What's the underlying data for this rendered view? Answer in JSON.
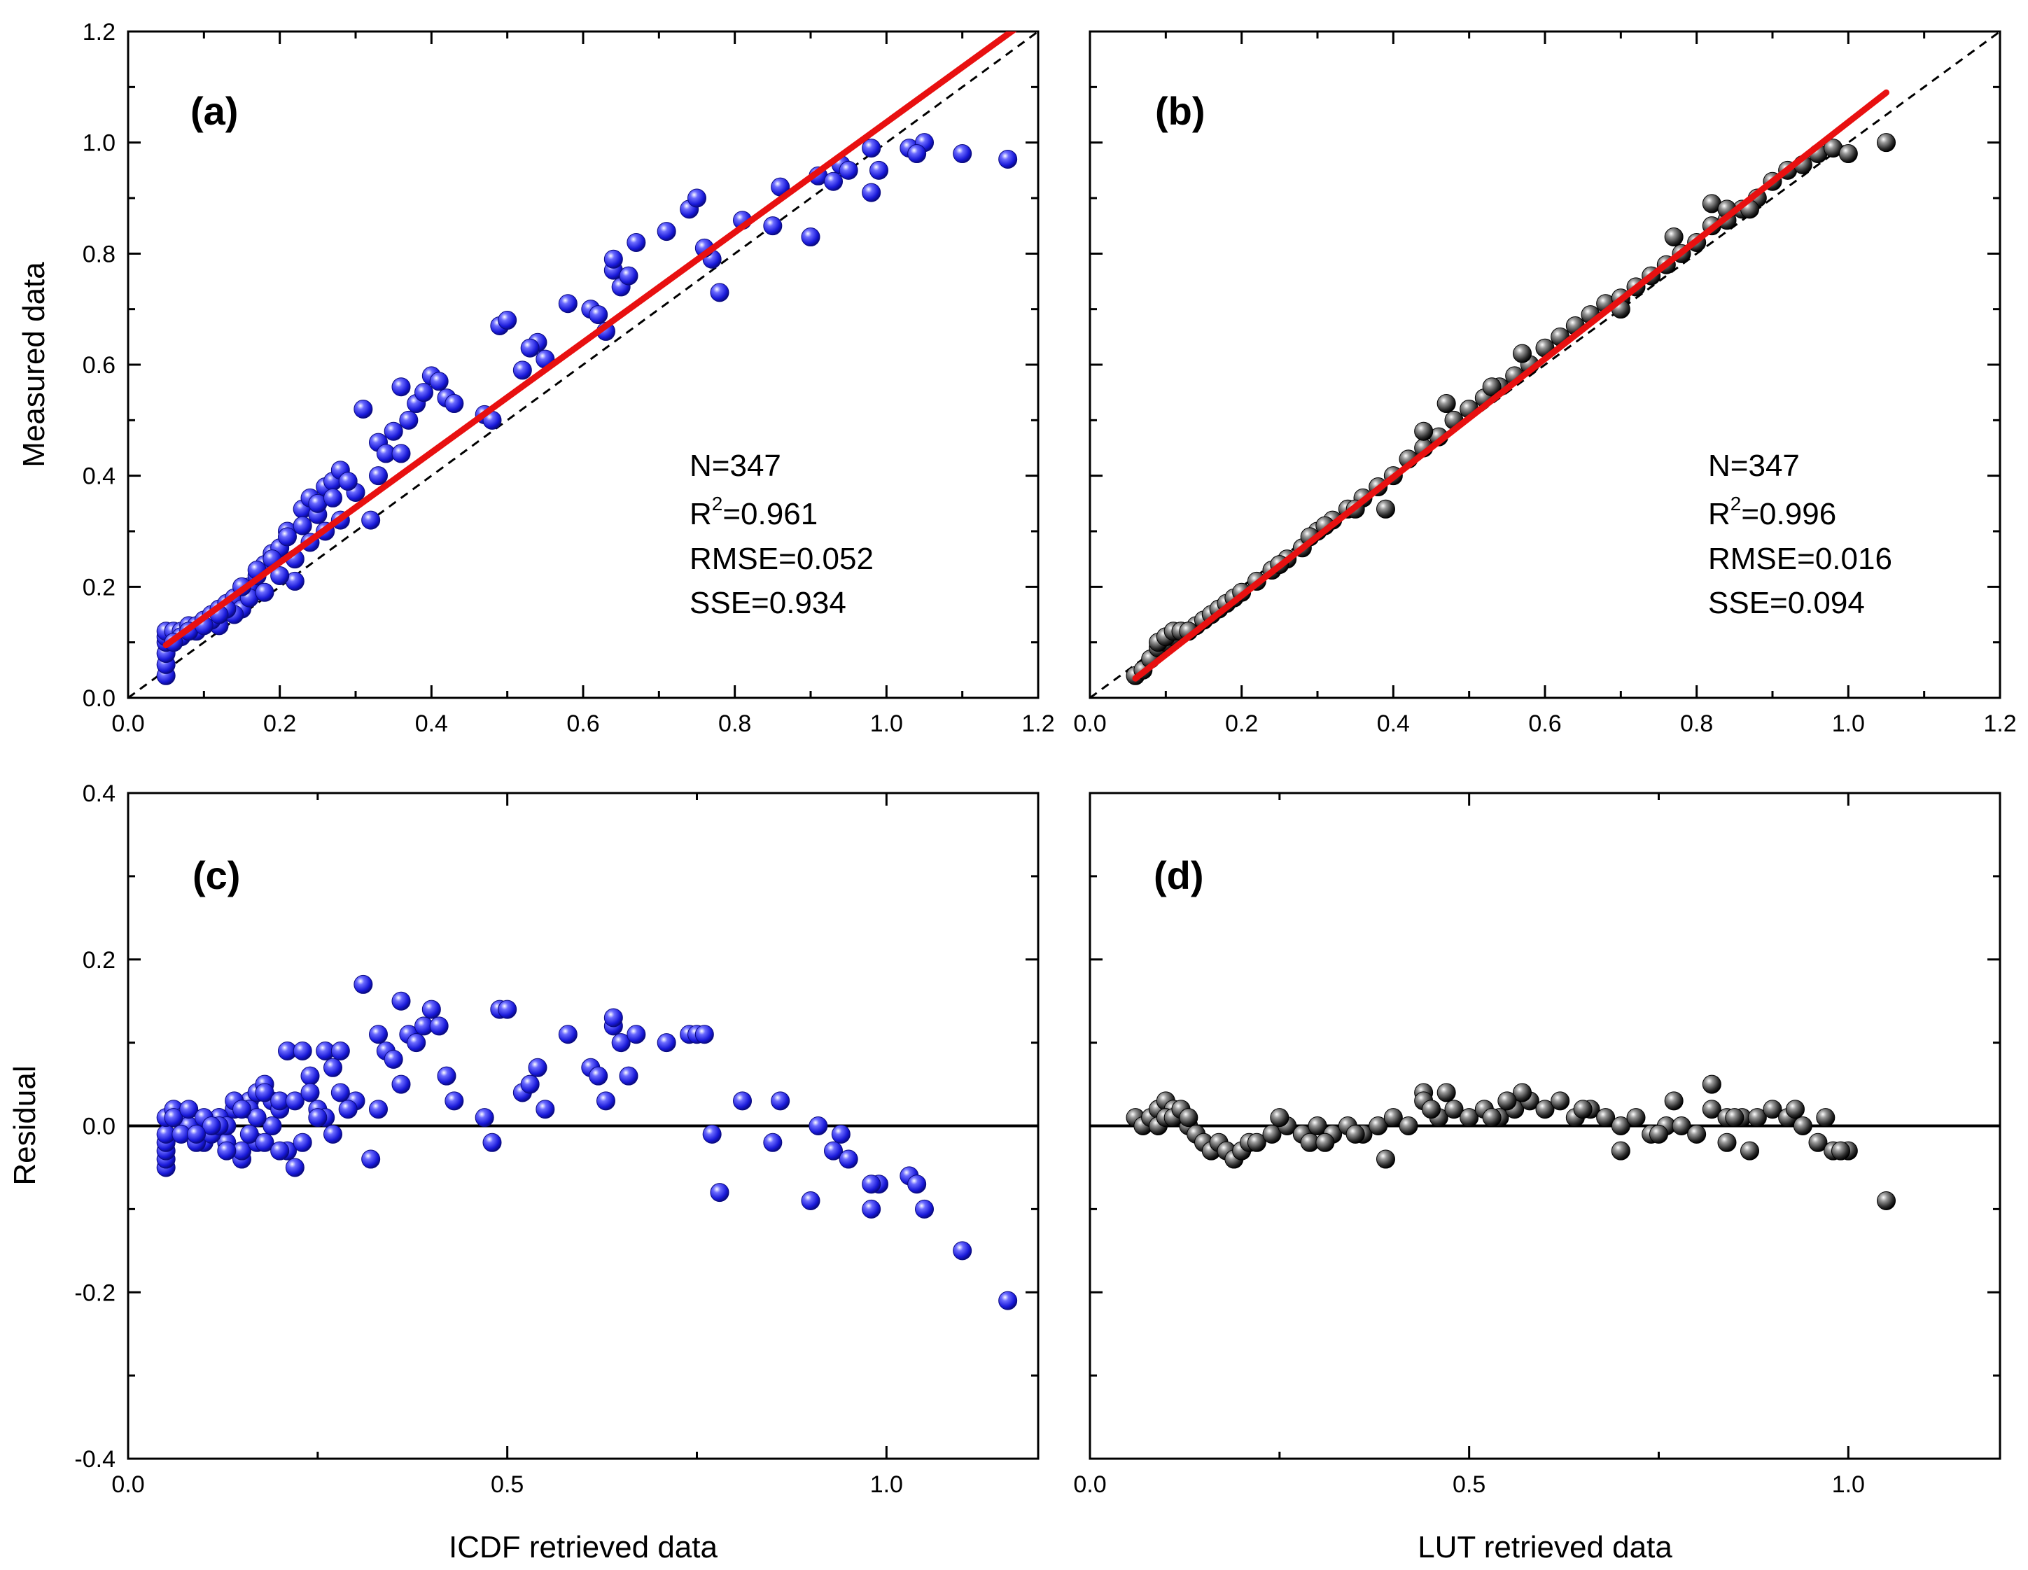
{
  "chart_data": [
    {
      "panel": "a",
      "type": "scatter",
      "label": "(a)",
      "xlabel": "",
      "ylabel": "Measured data",
      "xlim": [
        0.0,
        1.2
      ],
      "ylim": [
        0.0,
        1.2
      ],
      "xticks": [
        "0.0",
        "0.2",
        "0.4",
        "0.6",
        "0.8",
        "1.0",
        "1.2"
      ],
      "yticks": [
        "0.0",
        "0.2",
        "0.4",
        "0.6",
        "0.8",
        "1.0",
        "1.2"
      ],
      "marker_color": "#2020e0",
      "fit_line": {
        "color": "#e81010",
        "x": [
          0.05,
          1.18
        ],
        "y": [
          0.095,
          1.215
        ]
      },
      "reference_line": {
        "style": "dashed",
        "x": [
          0.0,
          1.2
        ],
        "y": [
          0.0,
          1.2
        ]
      },
      "stats": {
        "n": "N=347",
        "r2_prefix": "R",
        "r2_sup": "2",
        "r2_value": "=0.961",
        "rmse": "RMSE=0.052",
        "sse": "SSE=0.934"
      },
      "x": [
        0.05,
        0.05,
        0.05,
        0.05,
        0.05,
        0.05,
        0.06,
        0.07,
        0.08,
        0.09,
        0.1,
        0.11,
        0.12,
        0.13,
        0.14,
        0.15,
        0.16,
        0.17,
        0.18,
        0.19,
        0.2,
        0.21,
        0.22,
        0.23,
        0.24,
        0.25,
        0.26,
        0.27,
        0.28,
        0.3,
        0.31,
        0.32,
        0.33,
        0.34,
        0.35,
        0.36,
        0.37,
        0.38,
        0.39,
        0.4,
        0.41,
        0.42,
        0.47,
        0.48,
        0.49,
        0.5,
        0.52,
        0.54,
        0.55,
        0.61,
        0.62,
        0.63,
        0.64,
        0.65,
        0.67,
        0.71,
        0.74,
        0.75,
        0.77,
        0.78,
        0.81,
        0.85,
        0.86,
        0.9,
        0.91,
        0.93,
        0.94,
        0.95,
        0.98,
        0.99,
        1.03,
        1.05,
        1.1,
        1.16,
        0.12,
        0.14,
        0.16,
        0.18,
        0.2,
        0.22,
        0.24,
        0.26,
        0.28,
        0.15,
        0.17,
        0.19,
        0.21,
        0.23,
        0.25,
        0.27,
        0.29,
        0.33,
        0.36,
        0.43,
        0.53,
        0.76,
        0.64,
        0.58,
        0.66,
        0.98,
        1.04,
        0.07,
        0.09,
        0.11,
        0.13,
        0.06,
        0.08,
        0.1,
        0.12
      ],
      "y": [
        0.04,
        0.06,
        0.08,
        0.1,
        0.11,
        0.12,
        0.12,
        0.12,
        0.13,
        0.13,
        0.14,
        0.15,
        0.16,
        0.17,
        0.18,
        0.16,
        0.2,
        0.22,
        0.24,
        0.26,
        0.27,
        0.3,
        0.21,
        0.34,
        0.36,
        0.33,
        0.38,
        0.39,
        0.41,
        0.37,
        0.52,
        0.32,
        0.46,
        0.44,
        0.48,
        0.56,
        0.5,
        0.53,
        0.55,
        0.58,
        0.57,
        0.54,
        0.51,
        0.5,
        0.67,
        0.68,
        0.59,
        0.64,
        0.61,
        0.7,
        0.69,
        0.66,
        0.77,
        0.74,
        0.82,
        0.84,
        0.88,
        0.9,
        0.79,
        0.73,
        0.86,
        0.85,
        0.92,
        0.83,
        0.94,
        0.93,
        0.96,
        0.95,
        0.91,
        0.95,
        0.99,
        1.0,
        0.98,
        0.97,
        0.13,
        0.15,
        0.18,
        0.19,
        0.22,
        0.25,
        0.28,
        0.3,
        0.32,
        0.2,
        0.23,
        0.25,
        0.29,
        0.31,
        0.35,
        0.36,
        0.39,
        0.4,
        0.44,
        0.53,
        0.63,
        0.81,
        0.79,
        0.71,
        0.76,
        0.99,
        0.98,
        0.11,
        0.12,
        0.14,
        0.16,
        0.1,
        0.12,
        0.13,
        0.15
      ]
    },
    {
      "panel": "b",
      "type": "scatter",
      "label": "(b)",
      "xlabel": "",
      "ylabel": "",
      "xlim": [
        0.0,
        1.2
      ],
      "ylim": [
        0.0,
        1.2
      ],
      "xticks": [
        "0.0",
        "0.2",
        "0.4",
        "0.6",
        "0.8",
        "1.0",
        "1.2"
      ],
      "yticks": [],
      "marker_color": "#3a3a3a",
      "fit_line": {
        "color": "#e81010",
        "x": [
          0.06,
          1.05
        ],
        "y": [
          0.035,
          1.09
        ]
      },
      "reference_line": {
        "style": "dashed",
        "x": [
          0.0,
          1.2
        ],
        "y": [
          0.0,
          1.2
        ]
      },
      "stats": {
        "n": "N=347",
        "r2_prefix": "R",
        "r2_sup": "2",
        "r2_value": "=0.996",
        "rmse": "RMSE=0.016",
        "sse": "SSE=0.094"
      },
      "x": [
        0.06,
        0.07,
        0.08,
        0.09,
        0.1,
        0.11,
        0.12,
        0.13,
        0.14,
        0.15,
        0.16,
        0.17,
        0.18,
        0.19,
        0.2,
        0.22,
        0.24,
        0.26,
        0.28,
        0.3,
        0.32,
        0.34,
        0.36,
        0.38,
        0.4,
        0.42,
        0.44,
        0.46,
        0.48,
        0.5,
        0.52,
        0.54,
        0.56,
        0.58,
        0.6,
        0.62,
        0.64,
        0.66,
        0.68,
        0.7,
        0.72,
        0.74,
        0.76,
        0.78,
        0.8,
        0.82,
        0.84,
        0.86,
        0.88,
        0.9,
        0.92,
        0.94,
        0.96,
        0.98,
        1.0,
        1.05,
        0.57,
        0.44,
        0.47,
        0.39,
        0.82,
        0.77,
        0.7,
        0.84,
        0.87,
        0.09,
        0.1,
        0.11,
        0.12,
        0.13,
        0.25,
        0.29,
        0.31,
        0.35,
        0.53
      ],
      "y": [
        0.04,
        0.05,
        0.07,
        0.09,
        0.1,
        0.11,
        0.12,
        0.12,
        0.13,
        0.14,
        0.15,
        0.16,
        0.17,
        0.18,
        0.19,
        0.21,
        0.23,
        0.25,
        0.27,
        0.3,
        0.32,
        0.34,
        0.36,
        0.38,
        0.4,
        0.43,
        0.45,
        0.47,
        0.5,
        0.52,
        0.54,
        0.56,
        0.58,
        0.6,
        0.63,
        0.65,
        0.67,
        0.69,
        0.71,
        0.72,
        0.74,
        0.76,
        0.78,
        0.8,
        0.82,
        0.85,
        0.86,
        0.88,
        0.9,
        0.93,
        0.95,
        0.96,
        0.98,
        0.99,
        0.98,
        1.0,
        0.62,
        0.48,
        0.53,
        0.34,
        0.89,
        0.83,
        0.7,
        0.88,
        0.88,
        0.1,
        0.11,
        0.12,
        0.12,
        0.12,
        0.24,
        0.29,
        0.31,
        0.34,
        0.56
      ]
    },
    {
      "panel": "c",
      "type": "scatter",
      "label": "(c)",
      "xlabel": "ICDF retrieved data",
      "ylabel": "Residual",
      "xlim": [
        0.0,
        1.2
      ],
      "ylim": [
        -0.4,
        0.4
      ],
      "xticks": [
        "0.0",
        "0.5",
        "1.0"
      ],
      "yticks": [
        "-0.4",
        "-0.2",
        "0.0",
        "0.2",
        "0.4"
      ],
      "marker_color": "#2020e0",
      "zero_line": true,
      "x": [
        0.05,
        0.05,
        0.05,
        0.05,
        0.05,
        0.05,
        0.06,
        0.07,
        0.08,
        0.09,
        0.1,
        0.11,
        0.12,
        0.13,
        0.14,
        0.15,
        0.16,
        0.17,
        0.18,
        0.19,
        0.2,
        0.21,
        0.22,
        0.23,
        0.24,
        0.25,
        0.26,
        0.27,
        0.28,
        0.3,
        0.31,
        0.32,
        0.33,
        0.34,
        0.35,
        0.36,
        0.37,
        0.38,
        0.39,
        0.4,
        0.41,
        0.42,
        0.47,
        0.48,
        0.49,
        0.5,
        0.52,
        0.54,
        0.55,
        0.61,
        0.62,
        0.63,
        0.64,
        0.65,
        0.67,
        0.71,
        0.74,
        0.75,
        0.77,
        0.78,
        0.81,
        0.85,
        0.86,
        0.9,
        0.91,
        0.93,
        0.94,
        0.95,
        0.98,
        0.99,
        1.03,
        1.05,
        1.1,
        1.16,
        0.12,
        0.14,
        0.16,
        0.18,
        0.2,
        0.22,
        0.24,
        0.26,
        0.28,
        0.15,
        0.17,
        0.19,
        0.21,
        0.23,
        0.25,
        0.27,
        0.29,
        0.33,
        0.36,
        0.43,
        0.53,
        0.76,
        0.64,
        0.58,
        0.66,
        0.98,
        1.04,
        0.07,
        0.09,
        0.11,
        0.13,
        0.06,
        0.08,
        0.1,
        0.12,
        0.16,
        0.18,
        0.2,
        0.19,
        0.17,
        0.15,
        0.13,
        0.11,
        0.09
      ],
      "y": [
        -0.05,
        -0.04,
        -0.03,
        -0.02,
        -0.01,
        0.01,
        0.02,
        0.01,
        0.0,
        -0.01,
        -0.02,
        0.0,
        0.01,
        -0.02,
        0.02,
        -0.04,
        0.03,
        0.04,
        0.05,
        0.03,
        0.02,
        0.09,
        -0.05,
        0.09,
        0.06,
        0.02,
        0.09,
        0.07,
        0.09,
        0.03,
        0.17,
        -0.04,
        0.11,
        0.09,
        0.08,
        0.15,
        0.11,
        0.1,
        0.12,
        0.14,
        0.12,
        0.06,
        0.01,
        -0.02,
        0.14,
        0.14,
        0.04,
        0.07,
        0.02,
        0.07,
        0.06,
        0.03,
        0.12,
        0.1,
        0.11,
        0.1,
        0.11,
        0.11,
        -0.01,
        -0.08,
        0.03,
        -0.02,
        0.03,
        -0.09,
        0.0,
        -0.03,
        -0.01,
        -0.04,
        -0.1,
        -0.07,
        -0.06,
        -0.1,
        -0.15,
        -0.21,
        0.01,
        0.03,
        0.02,
        0.04,
        0.03,
        0.03,
        0.04,
        0.01,
        0.04,
        -0.03,
        -0.02,
        0.0,
        -0.03,
        -0.02,
        0.01,
        -0.01,
        0.02,
        0.02,
        0.05,
        0.03,
        0.05,
        0.11,
        0.13,
        0.11,
        0.06,
        -0.07,
        -0.07,
        -0.01,
        -0.02,
        -0.01,
        0.0,
        0.01,
        0.02,
        0.01,
        0.0,
        -0.01,
        -0.02,
        -0.03,
        0.0,
        0.01,
        0.02,
        -0.03,
        0.0,
        -0.01
      ]
    },
    {
      "panel": "d",
      "type": "scatter",
      "label": "(d)",
      "xlabel": "LUT retrieved data",
      "ylabel": "",
      "xlim": [
        0.0,
        1.2
      ],
      "ylim": [
        -0.4,
        0.4
      ],
      "xticks": [
        "0.0",
        "0.5",
        "1.0"
      ],
      "yticks": [],
      "marker_color": "#3a3a3a",
      "zero_line": true,
      "x": [
        0.06,
        0.07,
        0.08,
        0.09,
        0.1,
        0.11,
        0.12,
        0.13,
        0.14,
        0.15,
        0.16,
        0.17,
        0.18,
        0.19,
        0.2,
        0.21,
        0.22,
        0.24,
        0.26,
        0.28,
        0.3,
        0.32,
        0.34,
        0.36,
        0.38,
        0.4,
        0.42,
        0.44,
        0.46,
        0.48,
        0.5,
        0.52,
        0.54,
        0.56,
        0.58,
        0.6,
        0.62,
        0.64,
        0.66,
        0.68,
        0.7,
        0.72,
        0.74,
        0.76,
        0.78,
        0.8,
        0.82,
        0.84,
        0.86,
        0.88,
        0.9,
        0.92,
        0.94,
        0.96,
        0.98,
        1.0,
        1.05,
        0.57,
        0.44,
        0.47,
        0.39,
        0.82,
        0.77,
        0.7,
        0.84,
        0.87,
        0.09,
        0.1,
        0.11,
        0.12,
        0.13,
        0.25,
        0.29,
        0.31,
        0.35,
        0.53,
        0.45,
        0.55,
        0.65,
        0.75,
        0.85,
        0.93,
        0.97,
        0.99
      ],
      "y": [
        0.01,
        0.0,
        0.01,
        0.02,
        0.03,
        0.02,
        0.01,
        0.0,
        -0.01,
        -0.02,
        -0.03,
        -0.02,
        -0.03,
        -0.04,
        -0.03,
        -0.02,
        -0.02,
        -0.01,
        0.0,
        -0.01,
        0.0,
        -0.01,
        0.0,
        -0.01,
        0.0,
        0.01,
        0.0,
        0.04,
        0.01,
        0.02,
        0.01,
        0.02,
        0.01,
        0.02,
        0.03,
        0.02,
        0.03,
        0.01,
        0.02,
        0.01,
        0.0,
        0.01,
        -0.01,
        0.0,
        0.0,
        -0.01,
        0.02,
        0.01,
        0.01,
        0.01,
        0.02,
        0.01,
        0.0,
        -0.02,
        -0.03,
        -0.03,
        -0.09,
        0.04,
        0.03,
        0.04,
        -0.04,
        0.05,
        0.03,
        -0.03,
        -0.02,
        -0.03,
        0.0,
        0.01,
        0.01,
        0.02,
        0.01,
        0.01,
        -0.02,
        -0.02,
        -0.01,
        0.01,
        0.02,
        0.03,
        0.02,
        -0.01,
        0.01,
        0.02,
        0.01,
        -0.03
      ]
    }
  ]
}
